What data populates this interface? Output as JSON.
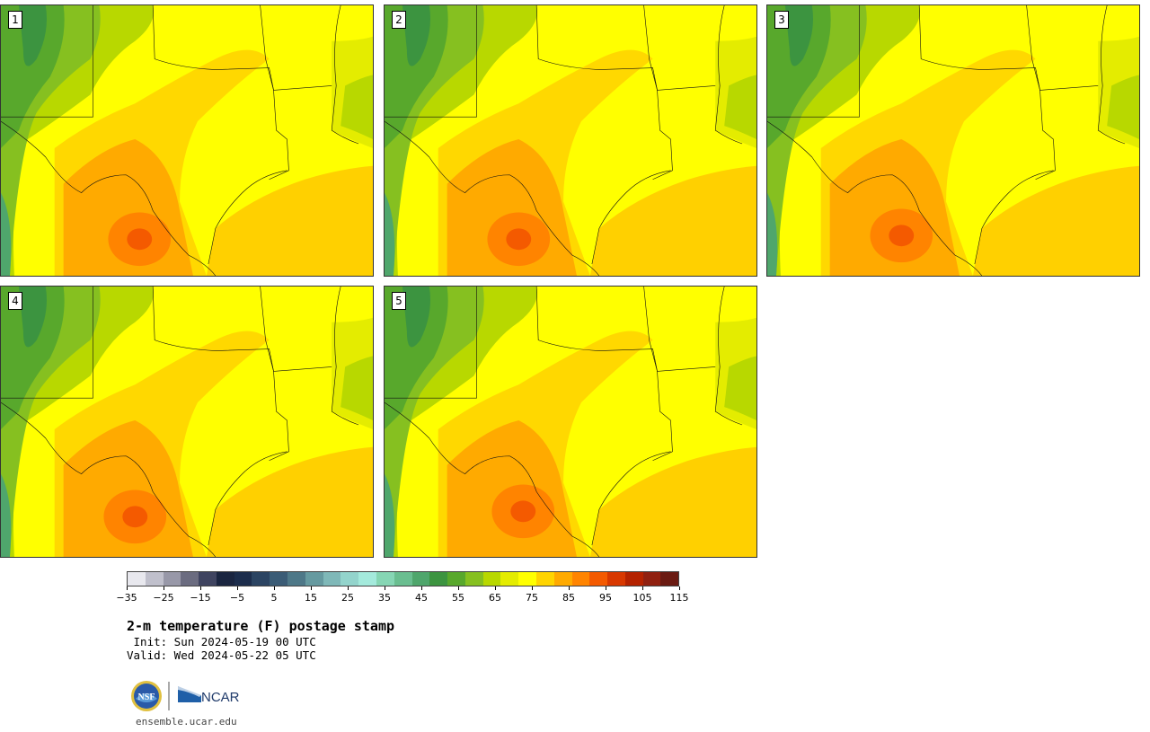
{
  "panels": [
    "1",
    "2",
    "3",
    "4",
    "5"
  ],
  "colorbar": {
    "colors": [
      "#e8e8ee",
      "#c0c0cc",
      "#9898a8",
      "#6b6c80",
      "#3f4460",
      "#1a2540",
      "#1c2d4c",
      "#2b4462",
      "#3b5c76",
      "#4e7888",
      "#669aa0",
      "#7fb8b8",
      "#93d4cc",
      "#a4eadc",
      "#86d6b4",
      "#6abe90",
      "#4fa66c",
      "#3c9440",
      "#58a82c",
      "#86c020",
      "#b8d800",
      "#e4ec00",
      "#ffff00",
      "#ffd400",
      "#ffaa00",
      "#ff8400",
      "#f45a00",
      "#d83800",
      "#b42200",
      "#902010",
      "#6a1a12"
    ],
    "tick_labels": [
      "−35",
      "−25",
      "−15",
      "−5",
      "5",
      "15",
      "25",
      "35",
      "45",
      "55",
      "65",
      "75",
      "85",
      "95",
      "105",
      "115"
    ]
  },
  "title": "2-m temperature (F) postage stamp",
  "init_line": " Init: Sun 2024-05-19 00 UTC",
  "valid_line": "Valid: Wed 2024-05-22 05 UTC",
  "logos": {
    "org1": "NSF",
    "org2": "NCAR"
  },
  "website": "ensemble.ucar.edu"
}
